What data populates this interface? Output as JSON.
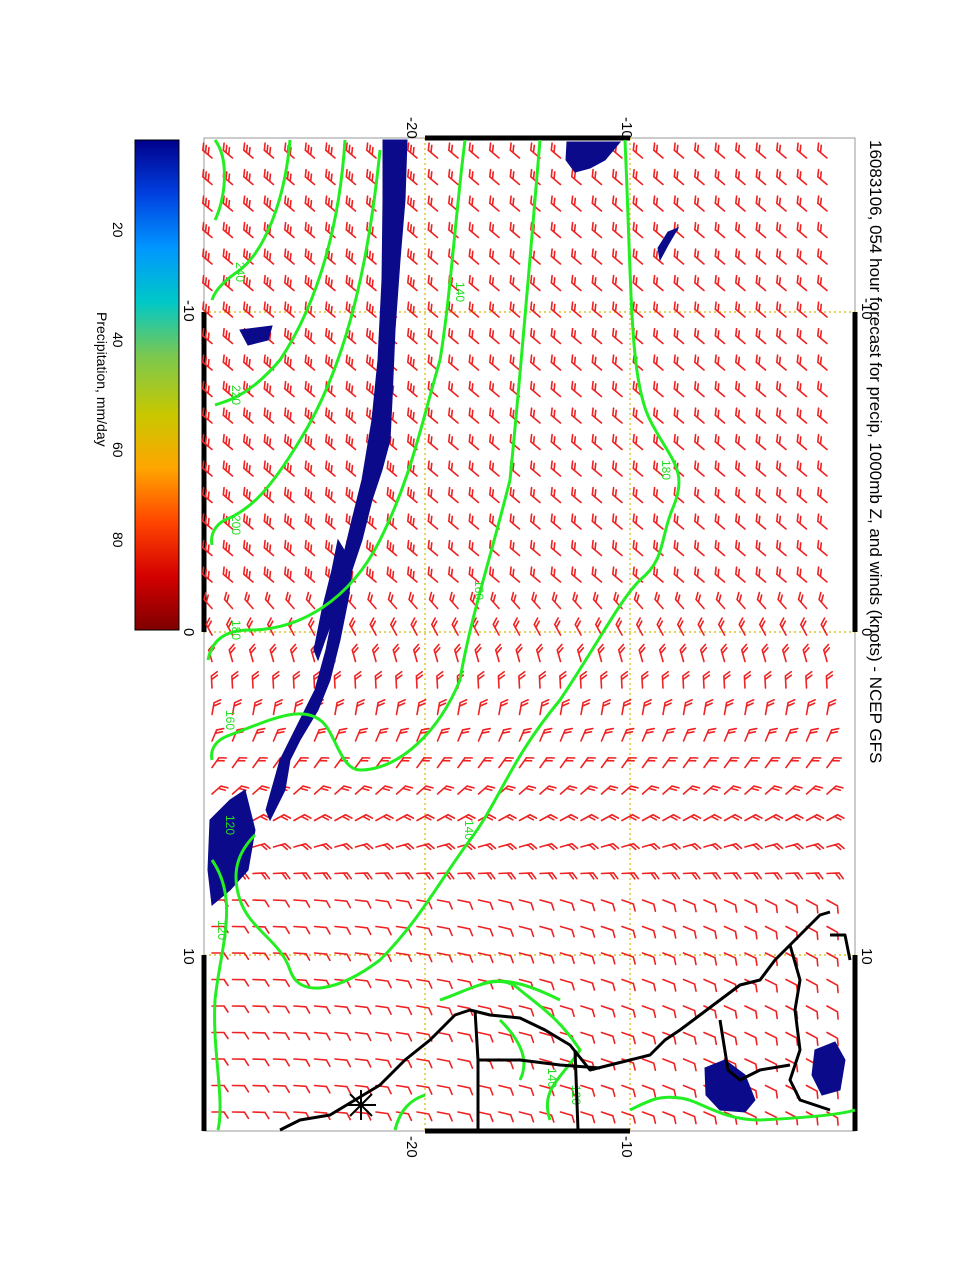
{
  "title": "16083106, 054 hour forecast for precip, 1000mb Z, and winds (knots) - NCEP GFS",
  "colorbar": {
    "label": "Precipitation, mm/day",
    "ticks": [
      "20",
      "40",
      "60",
      "80"
    ],
    "colors": [
      "#7f0000",
      "#d40000",
      "#ff4500",
      "#ffa500",
      "#c8c800",
      "#7ac850",
      "#00c8c8",
      "#0096ff",
      "#0040e0",
      "#00008b"
    ]
  },
  "axes": {
    "left_ticks": [
      "-10",
      "0",
      "10"
    ],
    "right_ticks": [
      "-10",
      "0",
      "10"
    ],
    "top_ticks": [
      "-20",
      "-10"
    ],
    "bottom_ticks": [
      "-20",
      "-10"
    ]
  },
  "contour_labels": [
    "240",
    "220",
    "200",
    "180",
    "160",
    "140",
    "120",
    "140",
    "160",
    "180",
    "140",
    "120",
    "140",
    "120"
  ],
  "colors": {
    "contour": "#22ee22",
    "barb": "#ee2222",
    "precip": "#0a0a8a",
    "grid": "#d4b800",
    "coast": "#000000"
  }
}
